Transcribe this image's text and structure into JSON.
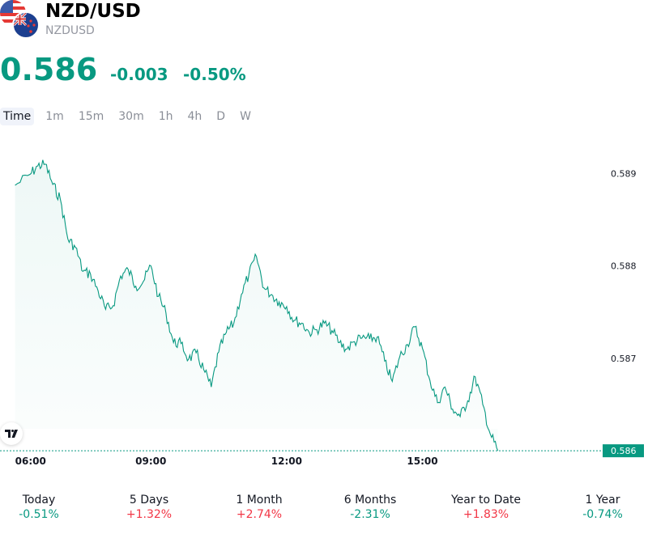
{
  "header": {
    "title": "NZD/USD",
    "subtitle": "NZDUSD",
    "price": "0.586",
    "change": "-0.003",
    "change_percent": "-0.50%"
  },
  "tabs": [
    {
      "label": "Time",
      "active": true
    },
    {
      "label": "1m",
      "active": false
    },
    {
      "label": "15m",
      "active": false
    },
    {
      "label": "30m",
      "active": false
    },
    {
      "label": "1h",
      "active": false
    },
    {
      "label": "4h",
      "active": false
    },
    {
      "label": "D",
      "active": false
    },
    {
      "label": "W",
      "active": false
    }
  ],
  "colors": {
    "accent": "#089981",
    "negative": "#089981",
    "positive": "#f23645",
    "grid_line": "#089981"
  },
  "chart_data": {
    "type": "area",
    "x_labels": [
      "06:00",
      "09:00",
      "12:00",
      "15:00"
    ],
    "x_range": [
      "05:40",
      "19:00"
    ],
    "ylim": [
      0.5858,
      0.5893
    ],
    "y_ticks": [
      "0.589",
      "0.588",
      "0.587",
      "0.586"
    ],
    "y_tick_values": [
      0.589,
      0.588,
      0.587,
      0.586
    ],
    "last_price_label": "0.586",
    "last_price": 0.586,
    "series": [
      {
        "x": [
          "06:00",
          "06:20",
          "06:30",
          "06:40",
          "06:50",
          "07:00",
          "07:10",
          "07:20",
          "07:30",
          "07:40",
          "07:50",
          "08:00",
          "08:10",
          "08:20",
          "08:30",
          "08:40",
          "08:50",
          "09:00",
          "09:10",
          "09:20",
          "09:30",
          "09:40",
          "09:50",
          "10:00",
          "10:10",
          "10:20",
          "10:30",
          "10:40",
          "10:50",
          "11:00",
          "11:10",
          "11:20",
          "11:30",
          "11:40",
          "11:50",
          "12:00",
          "12:10",
          "12:20",
          "12:30",
          "12:40",
          "12:50",
          "13:00",
          "13:10",
          "13:20",
          "13:30",
          "13:40",
          "13:50",
          "14:00",
          "14:10",
          "14:20",
          "14:30",
          "14:40",
          "14:50",
          "15:00",
          "15:10",
          "15:20",
          "15:30",
          "15:40",
          "15:50",
          "16:00",
          "16:10",
          "16:20",
          "16:30",
          "16:40"
        ],
        "values": [
          0.58887,
          0.58899,
          0.58908,
          0.5891,
          0.58888,
          0.58872,
          0.58829,
          0.5882,
          0.58794,
          0.58791,
          0.58773,
          0.58753,
          0.58757,
          0.58789,
          0.58796,
          0.58778,
          0.58783,
          0.588,
          0.58767,
          0.58749,
          0.58717,
          0.58716,
          0.58699,
          0.58706,
          0.58688,
          0.58669,
          0.58707,
          0.58728,
          0.58738,
          0.58769,
          0.58791,
          0.5881,
          0.58776,
          0.58769,
          0.58761,
          0.58756,
          0.58741,
          0.58738,
          0.58728,
          0.58731,
          0.58738,
          0.5873,
          0.58717,
          0.5871,
          0.58718,
          0.58722,
          0.58721,
          0.58723,
          0.58697,
          0.58675,
          0.58702,
          0.58715,
          0.58734,
          0.58711,
          0.58676,
          0.58652,
          0.58669,
          0.58645,
          0.58637,
          0.58654,
          0.5868,
          0.5865,
          0.58618,
          0.586
        ]
      }
    ]
  },
  "performance": [
    {
      "label": "Today",
      "value": "-0.51%",
      "trend": "neg"
    },
    {
      "label": "5 Days",
      "value": "+1.32%",
      "trend": "pos"
    },
    {
      "label": "1 Month",
      "value": "+2.74%",
      "trend": "pos"
    },
    {
      "label": "6 Months",
      "value": "-2.31%",
      "trend": "neg"
    },
    {
      "label": "Year to Date",
      "value": "+1.83%",
      "trend": "pos"
    },
    {
      "label": "1 Year",
      "value": "-0.74%",
      "trend": "neg"
    }
  ]
}
